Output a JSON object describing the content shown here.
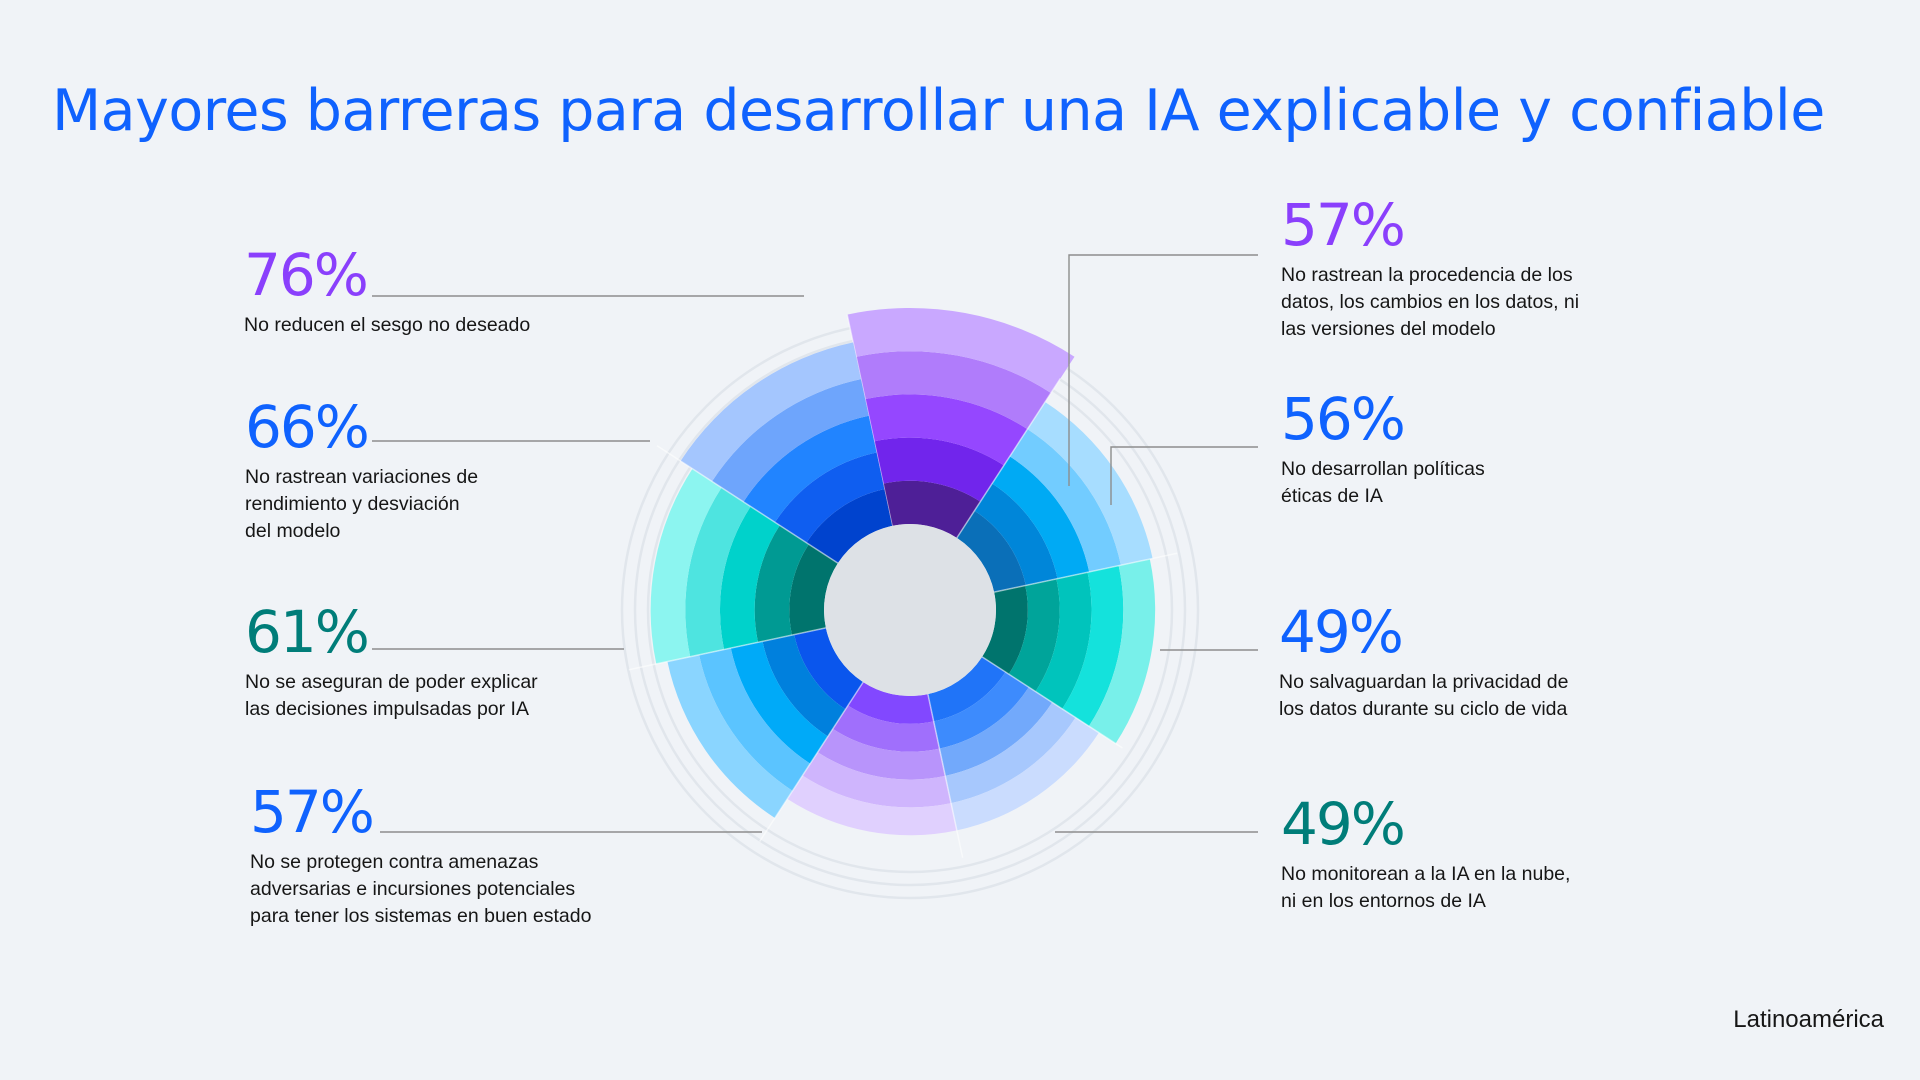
{
  "title": "Mayores barreras para desarrollar una IA explicable y confiable",
  "region": "Latinoamérica",
  "chart_data": {
    "type": "polar-area",
    "title": "Mayores barreras para desarrollar una IA explicable y confiable",
    "unit": "%",
    "center_color": "#dde1e6",
    "series": [
      {
        "label": "76%",
        "value": 76,
        "description": "No reducen el sesgo no deseado",
        "label_color": "#8a3ffc",
        "colors": [
          "#4e1f97",
          "#7125ec",
          "#9547ff",
          "#b07cfb",
          "#c9a8ff"
        ]
      },
      {
        "label": "57%",
        "value": 57,
        "description": "No rastrean la procedencia de los\ndatos, los cambios en los datos, ni\nlas versiones del modelo",
        "label_color": "#8a3ffc",
        "colors": [
          "#0a6fb8",
          "#0086d9",
          "#00aaf4",
          "#72ccff",
          "#a7ddff"
        ]
      },
      {
        "label": "56%",
        "value": 56,
        "description": "No desarrollan políticas\néticas de IA",
        "label_color": "#0f62fe",
        "colors": [
          "#00746d",
          "#00a49a",
          "#00c4bc",
          "#14e2dc",
          "#78f0ea"
        ]
      },
      {
        "label": "49%",
        "value": 49,
        "description": "No salvaguardan la privacidad de\nlos datos durante su ciclo de vida",
        "label_color": "#0f62fe",
        "colors": [
          "#2074f8",
          "#3d8bfd",
          "#72a9fb",
          "#a7c8fd",
          "#cadcfe"
        ]
      },
      {
        "label": "49%",
        "value": 49,
        "description": "No monitorean a la IA en la nube,\nni en los entornos de IA",
        "label_color": "#007d79",
        "colors": [
          "#8248ff",
          "#a06ffc",
          "#b894fb",
          "#cfb5fd",
          "#e0d0fe"
        ]
      },
      {
        "label": "57%",
        "value": 57,
        "description": "No se protegen contra amenazas\nadversarias e incursiones potenciales\npara tener los sistemas en buen estado",
        "label_color": "#0f62fe",
        "colors": [
          "#0a56ed",
          "#0080dd",
          "#00aaf8",
          "#5bc4ff",
          "#8ad5ff"
        ]
      },
      {
        "label": "61%",
        "value": 61,
        "description": "No se aseguran de poder explicar\nlas decisiones impulsadas por IA",
        "label_color": "#007d79",
        "colors": [
          "#00746d",
          "#009a93",
          "#00d2cb",
          "#4ee4e0",
          "#8cf5f0"
        ]
      },
      {
        "label": "66%",
        "value": 66,
        "description": "No rastrean variaciones de\nrendimiento y desviación\ndel modelo",
        "label_color": "#0f62fe",
        "colors": [
          "#0043ce",
          "#0f5ef0",
          "#2184ff",
          "#6ea5fc",
          "#a4c6fe"
        ]
      }
    ]
  }
}
